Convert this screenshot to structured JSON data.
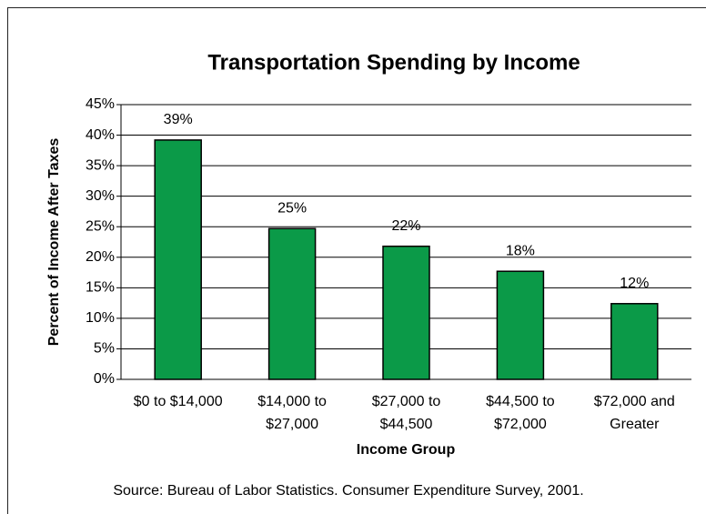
{
  "chart_data": {
    "type": "bar",
    "title": "Transportation Spending by Income",
    "x_label": "Income Group",
    "y_label": "Percent of Income After Taxes",
    "source": "Source: Bureau of Labor Statistics. Consumer Expenditure Survey, 2001.",
    "categories": [
      "$0 to $14,000",
      "$14,000 to\n$27,000",
      "$27,000 to\n$44,500",
      "$44,500 to\n$72,000",
      "$72,000 and\nGreater"
    ],
    "values": [
      39.2,
      24.7,
      21.8,
      17.7,
      12.4
    ],
    "value_labels": [
      "39%",
      "25%",
      "22%",
      "18%",
      "12%"
    ],
    "color": "#0b9a48",
    "ylim": [
      0,
      45
    ],
    "yticks": [
      {
        "value": 0,
        "label": "0%"
      },
      {
        "value": 5,
        "label": "5%"
      },
      {
        "value": 10,
        "label": "10%"
      },
      {
        "value": 15,
        "label": "15%"
      },
      {
        "value": 20,
        "label": "20%"
      },
      {
        "value": 25,
        "label": "25%"
      },
      {
        "value": 30,
        "label": "30%"
      },
      {
        "value": 35,
        "label": "35%"
      },
      {
        "value": 40,
        "label": "40%"
      },
      {
        "value": 45,
        "label": "45%"
      }
    ],
    "grid": true
  }
}
